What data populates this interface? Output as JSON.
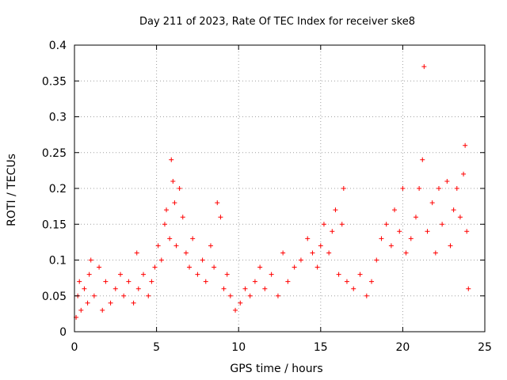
{
  "chart_data": {
    "type": "scatter",
    "title": "Day 211 of 2023, Rate Of TEC Index for receiver ske8",
    "xlabel": "GPS time / hours",
    "ylabel": "ROTI / TECUs",
    "xlim": [
      0,
      25
    ],
    "ylim": [
      0,
      0.4
    ],
    "xticks": [
      0,
      5,
      10,
      15,
      20,
      25
    ],
    "xtick_labels": [
      "0",
      "5",
      "10",
      "15",
      "20",
      "25"
    ],
    "yticks": [
      0,
      0.05,
      0.1,
      0.15,
      0.2,
      0.25,
      0.3,
      0.35,
      0.4
    ],
    "ytick_labels": [
      "0",
      "0.05",
      "0.1",
      "0.15",
      "0.2",
      "0.25",
      "0.3",
      "0.35",
      "0.4"
    ],
    "grid": true,
    "marker": "+",
    "marker_color": "#ff0000",
    "series": [
      {
        "name": "ROTI",
        "points": [
          [
            0.1,
            0.02
          ],
          [
            0.2,
            0.05
          ],
          [
            0.3,
            0.07
          ],
          [
            0.4,
            0.03
          ],
          [
            0.6,
            0.06
          ],
          [
            0.8,
            0.04
          ],
          [
            0.9,
            0.08
          ],
          [
            1.0,
            0.1
          ],
          [
            1.2,
            0.05
          ],
          [
            1.5,
            0.09
          ],
          [
            1.7,
            0.03
          ],
          [
            1.9,
            0.07
          ],
          [
            2.2,
            0.04
          ],
          [
            2.5,
            0.06
          ],
          [
            2.8,
            0.08
          ],
          [
            3.0,
            0.05
          ],
          [
            3.3,
            0.07
          ],
          [
            3.6,
            0.04
          ],
          [
            3.8,
            0.11
          ],
          [
            3.9,
            0.06
          ],
          [
            4.2,
            0.08
          ],
          [
            4.5,
            0.05
          ],
          [
            4.7,
            0.07
          ],
          [
            4.9,
            0.09
          ],
          [
            5.1,
            0.12
          ],
          [
            5.3,
            0.1
          ],
          [
            5.5,
            0.15
          ],
          [
            5.6,
            0.17
          ],
          [
            5.8,
            0.13
          ],
          [
            5.9,
            0.24
          ],
          [
            6.0,
            0.21
          ],
          [
            6.1,
            0.18
          ],
          [
            6.2,
            0.12
          ],
          [
            6.4,
            0.2
          ],
          [
            6.6,
            0.16
          ],
          [
            6.8,
            0.11
          ],
          [
            7.0,
            0.09
          ],
          [
            7.2,
            0.13
          ],
          [
            7.5,
            0.08
          ],
          [
            7.8,
            0.1
          ],
          [
            8.0,
            0.07
          ],
          [
            8.3,
            0.12
          ],
          [
            8.5,
            0.09
          ],
          [
            8.7,
            0.18
          ],
          [
            8.9,
            0.16
          ],
          [
            9.1,
            0.06
          ],
          [
            9.3,
            0.08
          ],
          [
            9.5,
            0.05
          ],
          [
            9.8,
            0.03
          ],
          [
            10.1,
            0.04
          ],
          [
            10.4,
            0.06
          ],
          [
            10.7,
            0.05
          ],
          [
            11.0,
            0.07
          ],
          [
            11.3,
            0.09
          ],
          [
            11.6,
            0.06
          ],
          [
            12.0,
            0.08
          ],
          [
            12.4,
            0.05
          ],
          [
            12.7,
            0.11
          ],
          [
            13.0,
            0.07
          ],
          [
            13.4,
            0.09
          ],
          [
            13.8,
            0.1
          ],
          [
            14.2,
            0.13
          ],
          [
            14.5,
            0.11
          ],
          [
            14.8,
            0.09
          ],
          [
            15.0,
            0.12
          ],
          [
            15.2,
            0.15
          ],
          [
            15.5,
            0.11
          ],
          [
            15.7,
            0.14
          ],
          [
            15.9,
            0.17
          ],
          [
            16.1,
            0.08
          ],
          [
            16.3,
            0.15
          ],
          [
            16.4,
            0.2
          ],
          [
            16.6,
            0.07
          ],
          [
            17.0,
            0.06
          ],
          [
            17.4,
            0.08
          ],
          [
            17.8,
            0.05
          ],
          [
            18.1,
            0.07
          ],
          [
            18.4,
            0.1
          ],
          [
            18.7,
            0.13
          ],
          [
            19.0,
            0.15
          ],
          [
            19.3,
            0.12
          ],
          [
            19.5,
            0.17
          ],
          [
            19.8,
            0.14
          ],
          [
            20.0,
            0.2
          ],
          [
            20.2,
            0.11
          ],
          [
            20.5,
            0.13
          ],
          [
            20.8,
            0.16
          ],
          [
            21.0,
            0.2
          ],
          [
            21.2,
            0.24
          ],
          [
            21.3,
            0.37
          ],
          [
            21.5,
            0.14
          ],
          [
            21.8,
            0.18
          ],
          [
            22.0,
            0.11
          ],
          [
            22.2,
            0.2
          ],
          [
            22.4,
            0.15
          ],
          [
            22.7,
            0.21
          ],
          [
            22.9,
            0.12
          ],
          [
            23.1,
            0.17
          ],
          [
            23.3,
            0.2
          ],
          [
            23.5,
            0.16
          ],
          [
            23.7,
            0.22
          ],
          [
            23.8,
            0.26
          ],
          [
            23.9,
            0.14
          ],
          [
            24.0,
            0.06
          ]
        ]
      }
    ]
  }
}
